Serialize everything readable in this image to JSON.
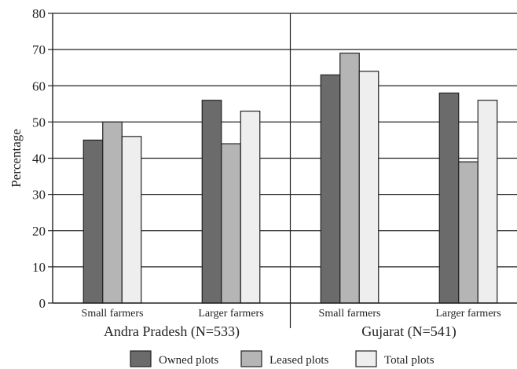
{
  "chart_data": {
    "type": "bar",
    "ylabel": "Percentage",
    "ylim": [
      0,
      80
    ],
    "yticks": [
      0,
      10,
      20,
      30,
      40,
      50,
      60,
      70,
      80
    ],
    "grid": true,
    "legend_position": "bottom",
    "groups": [
      {
        "label": "Andra Pradesh (N=533)",
        "categories": [
          "Small farmers",
          "Larger farmers"
        ]
      },
      {
        "label": "Gujarat (N=541)",
        "categories": [
          "Small farmers",
          "Larger farmers"
        ]
      }
    ],
    "categories": [
      "Small farmers",
      "Larger farmers",
      "Small farmers",
      "Larger farmers"
    ],
    "series": [
      {
        "name": "Owned plots",
        "color": "#6b6b6b",
        "values": [
          45,
          56,
          63,
          58
        ]
      },
      {
        "name": "Leased plots",
        "color": "#b5b5b5",
        "values": [
          50,
          44,
          69,
          39
        ]
      },
      {
        "name": "Total plots",
        "color": "#eeeeee",
        "values": [
          46,
          53,
          64,
          56
        ]
      }
    ]
  }
}
